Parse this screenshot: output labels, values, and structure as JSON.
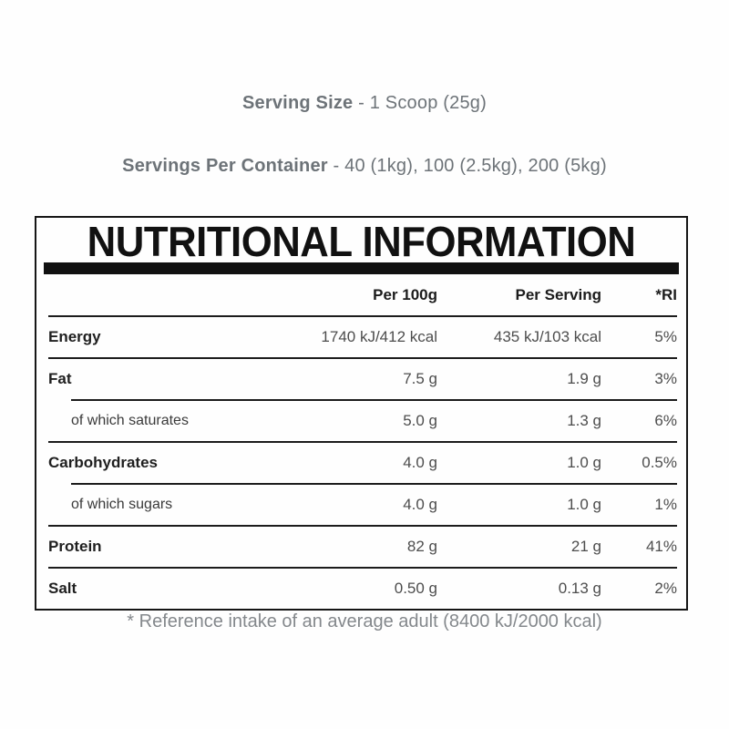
{
  "intro": {
    "serving_size_label": "Serving Size",
    "serving_size_value": " - 1 Scoop (25g)",
    "servings_per_container_label": "Servings Per Container",
    "servings_per_container_value": " - 40 (1kg), 100 (2.5kg), 200 (5kg)"
  },
  "table": {
    "title": "NUTRITIONAL INFORMATION",
    "columns": {
      "per_100g": "Per 100g",
      "per_serving": "Per Serving",
      "ri": "*RI"
    },
    "rows": [
      {
        "label": "Energy",
        "per_100g": "1740 kJ/412 kcal",
        "per_serving": "435 kJ/103 kcal",
        "ri": "5%"
      },
      {
        "label": "Fat",
        "per_100g": "7.5 g",
        "per_serving": "1.9 g",
        "ri": "3%"
      },
      {
        "label": "of which saturates",
        "per_100g": "5.0 g",
        "per_serving": "1.3 g",
        "ri": "6%"
      },
      {
        "label": "Carbohydrates",
        "per_100g": "4.0 g",
        "per_serving": "1.0 g",
        "ri": "0.5%"
      },
      {
        "label": "of which sugars",
        "per_100g": "4.0 g",
        "per_serving": "1.0 g",
        "ri": "1%"
      },
      {
        "label": "Protein",
        "per_100g": "82 g",
        "per_serving": "21 g",
        "ri": "41%"
      },
      {
        "label": "Salt",
        "per_100g": "0.50 g",
        "per_serving": "0.13 g",
        "ri": "2%"
      }
    ]
  },
  "footnote": "* Reference intake of an average adult (8400 kJ/2000 kcal)",
  "colors": {
    "rule_and_border": "#161616",
    "title_text": "#111111",
    "row_label_text": "#1f1f1f",
    "value_text": "#4d4d4d",
    "intro_text": "#6d7378",
    "footnote_text": "#84888c",
    "background": "#fefefe"
  }
}
